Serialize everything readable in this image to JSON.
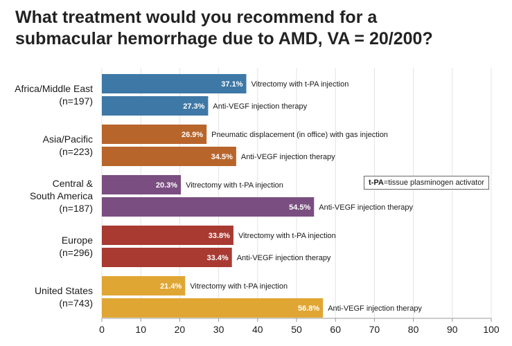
{
  "title_lines": [
    "What treatment would you recommend for a",
    "submacular hemorrhage due to AMD, VA = 20/200?"
  ],
  "note": {
    "abbr": "t-PA",
    "text": "=tissue plasminogen activator"
  },
  "chart_data": {
    "type": "bar",
    "orientation": "horizontal",
    "title": "What treatment would you recommend for a submacular hemorrhage due to AMD, VA = 20/200?",
    "xlim": [
      0,
      100
    ],
    "xticks": [
      0,
      10,
      20,
      30,
      40,
      50,
      60,
      70,
      80,
      90,
      100
    ],
    "groups": [
      {
        "label_lines": [
          "Africa/Middle East",
          "(n=197)"
        ],
        "color": "#3E78A6",
        "bars": [
          {
            "value": 37.1,
            "value_label": "37.1%",
            "label": "Vitrectomy with t-PA injection"
          },
          {
            "value": 27.3,
            "value_label": "27.3%",
            "label": "Anti-VEGF injection therapy"
          }
        ]
      },
      {
        "label_lines": [
          "Asia/Pacific",
          "(n=223)"
        ],
        "color": "#B8652C",
        "bars": [
          {
            "value": 26.9,
            "value_label": "26.9%",
            "label": "Pneumatic displacement (in office) with gas injection"
          },
          {
            "value": 34.5,
            "value_label": "34.5%",
            "label": "Anti-VEGF injection therapy"
          }
        ]
      },
      {
        "label_lines": [
          "Central &",
          "South America",
          "(n=187)"
        ],
        "color": "#7A4E80",
        "bars": [
          {
            "value": 20.3,
            "value_label": "20.3%",
            "label": "Vitrectomy with t-PA injection"
          },
          {
            "value": 54.5,
            "value_label": "54.5%",
            "label": "Anti-VEGF injection therapy"
          }
        ]
      },
      {
        "label_lines": [
          "Europe",
          "(n=296)"
        ],
        "color": "#A83A32",
        "bars": [
          {
            "value": 33.8,
            "value_label": "33.8%",
            "label": "Vitrectomy with t-PA injection"
          },
          {
            "value": 33.4,
            "value_label": "33.4%",
            "label": "Anti-VEGF injection therapy"
          }
        ]
      },
      {
        "label_lines": [
          "United States",
          "(n=743)"
        ],
        "color": "#E0A634",
        "bars": [
          {
            "value": 21.4,
            "value_label": "21.4%",
            "label": "Vitrectomy with t-PA injection"
          },
          {
            "value": 56.8,
            "value_label": "56.8%",
            "label": "Anti-VEGF injection therapy"
          }
        ]
      }
    ]
  }
}
